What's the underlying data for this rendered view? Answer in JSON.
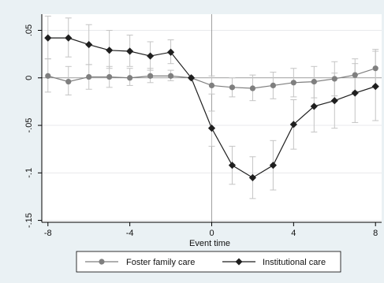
{
  "chart_data": {
    "type": "line",
    "title": "",
    "xlabel": "Event time",
    "ylabel": "",
    "xlim": [
      -8.3,
      8.3
    ],
    "ylim": [
      -0.152,
      0.067
    ],
    "xticks": [
      -8,
      -4,
      0,
      4,
      8
    ],
    "xtick_labels": [
      "-8",
      "-4",
      "0",
      "4",
      "8"
    ],
    "yticks": [
      0.05,
      0,
      -0.05,
      -0.1,
      -0.15
    ],
    "ytick_labels": [
      ".05",
      "0",
      "-.05",
      "-.1",
      "-.15"
    ],
    "reference_lines": {
      "x": 0,
      "y": 0
    },
    "grid": "horizontal",
    "legend_position": "bottom",
    "x": [
      -8,
      -7,
      -6,
      -5,
      -4,
      -3,
      -2,
      -1,
      0,
      1,
      2,
      3,
      4,
      5,
      6,
      7,
      8
    ],
    "series": [
      {
        "name": "Foster family care",
        "marker": "circle",
        "color": "#7f7f7f",
        "values": [
          0.002,
          -0.004,
          0.001,
          0.001,
          0.0,
          0.002,
          0.002,
          0.0,
          -0.008,
          -0.01,
          -0.011,
          -0.008,
          -0.005,
          -0.004,
          -0.001,
          0.003,
          0.01
        ],
        "ci_lower": [
          -0.015,
          -0.018,
          -0.012,
          -0.01,
          -0.008,
          -0.005,
          -0.003,
          0.0,
          -0.017,
          -0.02,
          -0.024,
          -0.022,
          -0.02,
          -0.021,
          -0.019,
          -0.014,
          -0.01
        ],
        "ci_upper": [
          0.02,
          0.012,
          0.014,
          0.012,
          0.01,
          0.01,
          0.008,
          0.0,
          0.002,
          0.0,
          0.003,
          0.006,
          0.01,
          0.012,
          0.017,
          0.02,
          0.03
        ]
      },
      {
        "name": "Institutional care",
        "marker": "diamond",
        "color": "#1f1f1f",
        "values": [
          0.042,
          0.042,
          0.035,
          0.029,
          0.028,
          0.023,
          0.027,
          0.0,
          -0.053,
          -0.092,
          -0.105,
          -0.092,
          -0.049,
          -0.03,
          -0.024,
          -0.016,
          -0.009
        ],
        "ci_lower": [
          0.02,
          0.022,
          0.014,
          0.01,
          0.012,
          0.008,
          0.015,
          0.0,
          -0.072,
          -0.112,
          -0.127,
          -0.118,
          -0.075,
          -0.057,
          -0.053,
          -0.047,
          -0.045
        ],
        "ci_upper": [
          0.065,
          0.063,
          0.056,
          0.05,
          0.045,
          0.038,
          0.04,
          0.0,
          -0.035,
          -0.072,
          -0.083,
          -0.066,
          -0.023,
          -0.005,
          0.005,
          0.015,
          0.028
        ]
      }
    ]
  }
}
